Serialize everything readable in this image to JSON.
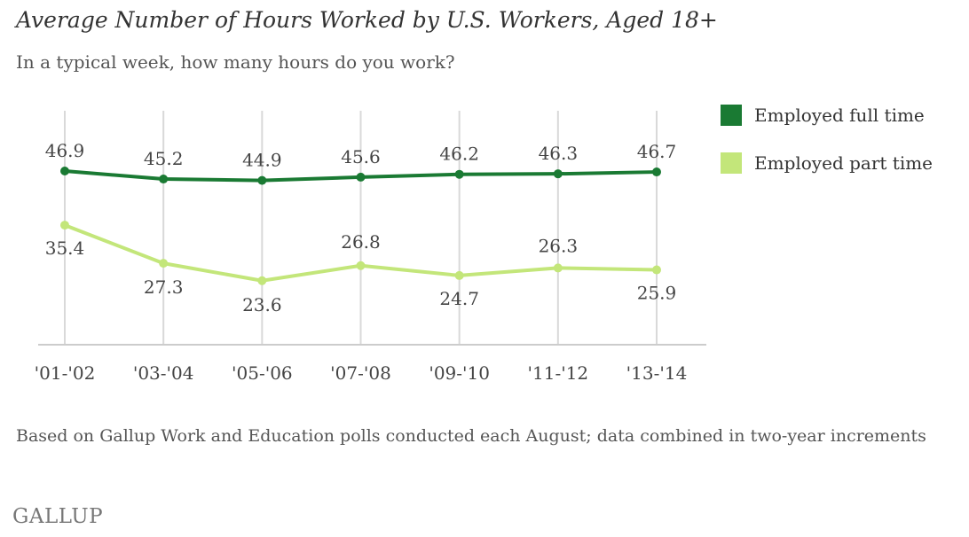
{
  "chart_data": {
    "type": "line",
    "title": "Average Number of Hours Worked by U.S. Workers, Aged 18+",
    "subtitle": "In a typical week, how many hours do you work?",
    "categories": [
      "'01-'02",
      "'03-'04",
      "'05-'06",
      "'07-'08",
      "'09-'10",
      "'11-'12",
      "'13-'14"
    ],
    "series": [
      {
        "name": "Employed full time",
        "color": "#1a7a33",
        "values": [
          46.9,
          45.2,
          44.9,
          45.6,
          46.2,
          46.3,
          46.7
        ],
        "labels": [
          "46.9",
          "45.2",
          "44.9",
          "45.6",
          "46.2",
          "46.3",
          "46.7"
        ]
      },
      {
        "name": "Employed part time",
        "color": "#c3e67a",
        "values": [
          35.4,
          27.3,
          23.6,
          26.8,
          24.7,
          26.3,
          25.9
        ],
        "labels": [
          "35.4",
          "27.3",
          "23.6",
          "26.8",
          "24.7",
          "26.3",
          "25.9"
        ]
      }
    ],
    "ylim": [
      10,
      50
    ],
    "grid": "vertical",
    "legend": "right",
    "xlabel": "",
    "ylabel": ""
  },
  "note": "Based on Gallup Work and Education polls conducted each August; data combined in two-year increments",
  "source": "GALLUP"
}
